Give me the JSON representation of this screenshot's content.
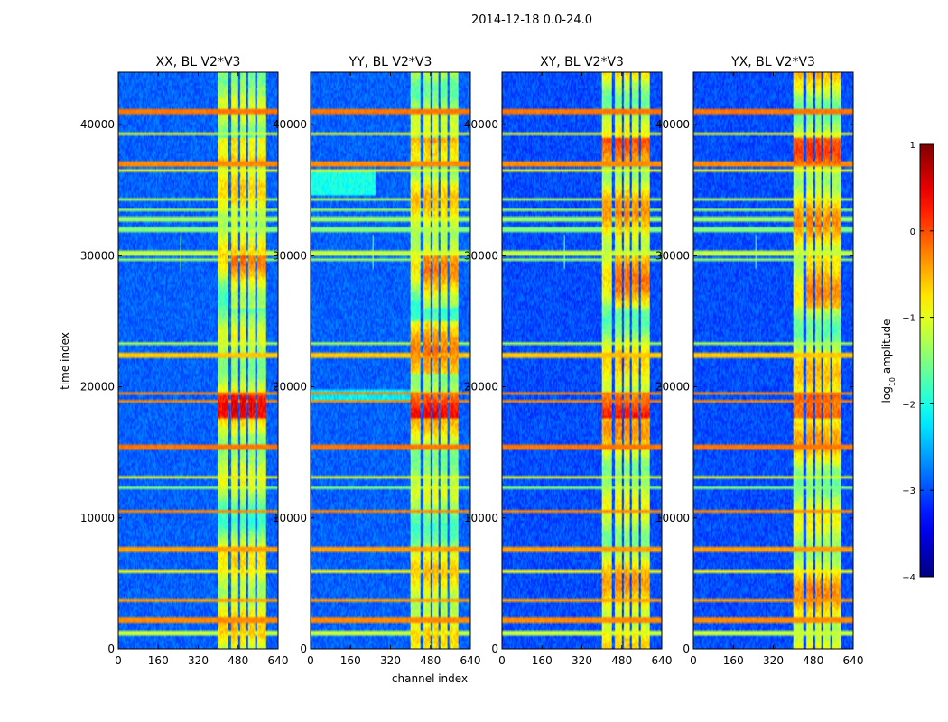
{
  "chart_data": {
    "type": "heatmap",
    "suptitle": "2014-12-18 0.0-24.0",
    "xlabel": "channel index",
    "ylabel": "time index",
    "xlim": [
      0,
      640
    ],
    "ylim": [
      0,
      44000
    ],
    "x_ticks": [
      0,
      160,
      320,
      480,
      640
    ],
    "x_tick_labels": [
      "0",
      "160",
      "320",
      "480",
      "640"
    ],
    "y_ticks": [
      0,
      10000,
      20000,
      30000,
      40000
    ],
    "y_tick_labels": [
      "0",
      "10000",
      "20000",
      "30000",
      "40000"
    ],
    "colormap": "jet",
    "colorbar": {
      "label_prefix": "log",
      "label_sub": "10",
      "label_suffix": " amplitude",
      "range": [
        -4,
        1
      ],
      "ticks": [
        1,
        0,
        -1,
        -2,
        -3,
        -4
      ],
      "tick_labels": [
        "1",
        "0",
        "−1",
        "−2",
        "−3",
        "−4"
      ]
    },
    "panels": [
      {
        "title": "XX, BL V2*V3",
        "band_strength": 1.0,
        "noise_level": -2.9
      },
      {
        "title": "YY, BL V2*V3",
        "band_strength": 1.0,
        "noise_level": -2.9
      },
      {
        "title": "XY, BL V2*V3",
        "band_strength": 0.85,
        "noise_level": -3.0
      },
      {
        "title": "YX, BL V2*V3",
        "band_strength": 0.85,
        "noise_level": -3.0
      }
    ],
    "rfi_channel_bands": [
      {
        "from": 400,
        "to": 440,
        "log_amp": -1.2
      },
      {
        "from": 452,
        "to": 478,
        "log_amp": -1.1
      },
      {
        "from": 488,
        "to": 512,
        "log_amp": -1.1
      },
      {
        "from": 522,
        "to": 546,
        "log_amp": -1.2
      },
      {
        "from": 556,
        "to": 590,
        "log_amp": -1.2
      }
    ],
    "rfi_time_lines": [
      {
        "t": 41000,
        "log_amp": -0.2
      },
      {
        "t": 39300,
        "log_amp": -1.0
      },
      {
        "t": 37000,
        "log_amp": -0.3
      },
      {
        "t": 36500,
        "log_amp": -0.9
      },
      {
        "t": 34300,
        "log_amp": -1.3
      },
      {
        "t": 33500,
        "log_amp": -1.4
      },
      {
        "t": 32800,
        "log_amp": -1.4
      },
      {
        "t": 32000,
        "log_amp": -1.5
      },
      {
        "t": 30200,
        "log_amp": -1.2
      },
      {
        "t": 29700,
        "log_amp": -1.4
      },
      {
        "t": 23300,
        "log_amp": -1.3
      },
      {
        "t": 22400,
        "log_amp": -0.6
      },
      {
        "t": 19500,
        "log_amp": -0.3
      },
      {
        "t": 18900,
        "log_amp": -0.3
      },
      {
        "t": 15400,
        "log_amp": -0.2
      },
      {
        "t": 13100,
        "log_amp": -1.0
      },
      {
        "t": 12300,
        "log_amp": -1.5
      },
      {
        "t": 10500,
        "log_amp": -0.3
      },
      {
        "t": 7600,
        "log_amp": -0.4
      },
      {
        "t": 5900,
        "log_amp": -0.9
      },
      {
        "t": 3700,
        "log_amp": -0.4
      },
      {
        "t": 2200,
        "log_amp": -0.3
      },
      {
        "t": 1200,
        "log_amp": -1.2
      }
    ]
  }
}
